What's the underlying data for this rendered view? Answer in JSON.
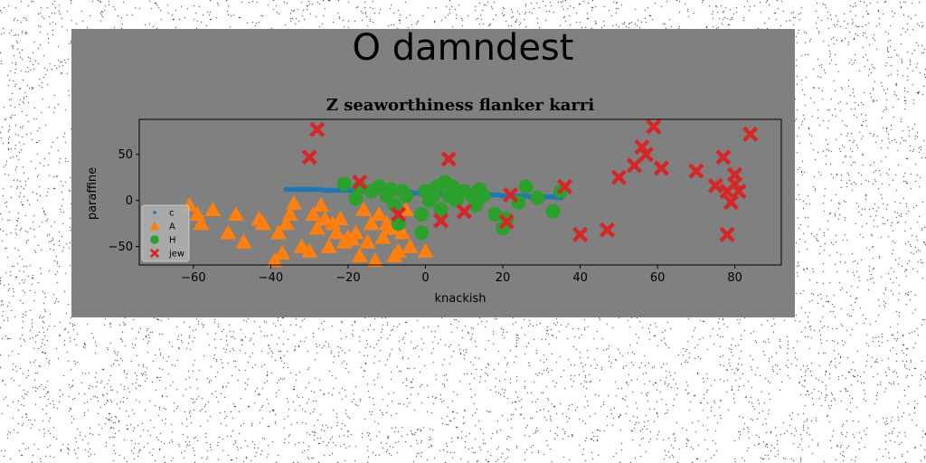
{
  "suptitle": "O damndest",
  "chart_data": {
    "type": "scatter",
    "title": "Z seaworthiness flanker karri",
    "xlabel": "knackish",
    "ylabel": "paraffine",
    "xlim": [
      -74,
      92
    ],
    "ylim": [
      -70,
      88
    ],
    "xticks": [
      -60,
      -40,
      -20,
      0,
      20,
      40,
      60,
      80
    ],
    "yticks": [
      -50,
      0,
      50
    ],
    "xtick_labels": [
      "−60",
      "−40",
      "−20",
      "0",
      "20",
      "40",
      "60",
      "80"
    ],
    "ytick_labels": [
      "−50",
      "0",
      "50"
    ],
    "grid": false,
    "legend_position": "lower-left",
    "series": [
      {
        "name": "c",
        "marker": "circle-small",
        "color": "#1f77b4",
        "points": [
          [
            -36,
            12
          ],
          [
            -35,
            12
          ],
          [
            -34,
            12
          ],
          [
            -33,
            12
          ],
          [
            -32,
            12
          ],
          [
            -31,
            12
          ],
          [
            -30,
            12
          ],
          [
            -29,
            12
          ],
          [
            -28,
            12
          ],
          [
            -27,
            12
          ],
          [
            -26,
            11
          ],
          [
            -25,
            11
          ],
          [
            -24,
            11
          ],
          [
            -23,
            11
          ],
          [
            -22,
            11
          ],
          [
            -21,
            11
          ],
          [
            -20,
            11
          ],
          [
            -19,
            11
          ],
          [
            -18,
            10
          ],
          [
            -17,
            10
          ],
          [
            -16,
            10
          ],
          [
            -15,
            10
          ],
          [
            -14,
            10
          ],
          [
            -13,
            10
          ],
          [
            -12,
            10
          ],
          [
            -11,
            9
          ],
          [
            -10,
            9
          ],
          [
            -9,
            9
          ],
          [
            -8,
            9
          ],
          [
            -7,
            9
          ],
          [
            -6,
            9
          ],
          [
            -5,
            9
          ],
          [
            -4,
            9
          ],
          [
            -3,
            8
          ],
          [
            -2,
            8
          ],
          [
            -1,
            8
          ],
          [
            0,
            8
          ],
          [
            1,
            8
          ],
          [
            2,
            8
          ],
          [
            3,
            8
          ],
          [
            4,
            8
          ],
          [
            5,
            7
          ],
          [
            6,
            7
          ],
          [
            7,
            7
          ],
          [
            8,
            7
          ],
          [
            9,
            7
          ],
          [
            10,
            7
          ],
          [
            11,
            7
          ],
          [
            12,
            6
          ],
          [
            13,
            6
          ],
          [
            14,
            6
          ],
          [
            15,
            6
          ],
          [
            16,
            6
          ],
          [
            17,
            6
          ],
          [
            18,
            6
          ],
          [
            19,
            6
          ],
          [
            20,
            5
          ],
          [
            21,
            5
          ],
          [
            22,
            5
          ],
          [
            23,
            5
          ],
          [
            24,
            5
          ],
          [
            25,
            5
          ],
          [
            26,
            5
          ],
          [
            27,
            4
          ],
          [
            28,
            4
          ],
          [
            29,
            4
          ],
          [
            30,
            4
          ],
          [
            31,
            4
          ],
          [
            32,
            4
          ],
          [
            33,
            4
          ],
          [
            34,
            3
          ],
          [
            35,
            3
          ]
        ]
      },
      {
        "name": "A",
        "marker": "triangle",
        "color": "#ff7f0e",
        "points": [
          [
            -61,
            -5
          ],
          [
            -59,
            -15
          ],
          [
            -58,
            -25
          ],
          [
            -55,
            -10
          ],
          [
            -51,
            -35
          ],
          [
            -49,
            -15
          ],
          [
            -47,
            -45
          ],
          [
            -43,
            -20
          ],
          [
            -42,
            -25
          ],
          [
            -39,
            -65
          ],
          [
            -38,
            -35
          ],
          [
            -37,
            -57
          ],
          [
            -36,
            -25
          ],
          [
            -35,
            -15
          ],
          [
            -34,
            -3
          ],
          [
            -32,
            -50
          ],
          [
            -30,
            -55
          ],
          [
            -29,
            -15
          ],
          [
            -28,
            -30
          ],
          [
            -27,
            -5
          ],
          [
            -26,
            -20
          ],
          [
            -25,
            -50
          ],
          [
            -24,
            -25
          ],
          [
            -23,
            -35
          ],
          [
            -22,
            -20
          ],
          [
            -21,
            -45
          ],
          [
            -20,
            -40
          ],
          [
            -19,
            -42
          ],
          [
            -18,
            -35
          ],
          [
            -17,
            -60
          ],
          [
            -16,
            -10
          ],
          [
            -15,
            -45
          ],
          [
            -14,
            -25
          ],
          [
            -13,
            -65
          ],
          [
            -12,
            -15
          ],
          [
            -11,
            -40
          ],
          [
            -10,
            -25
          ],
          [
            -9,
            -30
          ],
          [
            -8,
            -60
          ],
          [
            -7,
            -55
          ],
          [
            -6,
            -35
          ],
          [
            -5,
            -10
          ],
          [
            -4,
            -50
          ],
          [
            0,
            -55
          ]
        ]
      },
      {
        "name": "H",
        "marker": "circle",
        "color": "#2ca02c",
        "points": [
          [
            -21,
            18
          ],
          [
            -18,
            2
          ],
          [
            -17,
            14
          ],
          [
            -14,
            10
          ],
          [
            -12,
            15
          ],
          [
            -10,
            5
          ],
          [
            -9,
            12
          ],
          [
            -8,
            -5
          ],
          [
            -7,
            -25
          ],
          [
            -6,
            10
          ],
          [
            -5,
            5
          ],
          [
            -1,
            -35
          ],
          [
            -1,
            -15
          ],
          [
            0,
            10
          ],
          [
            1,
            0
          ],
          [
            2,
            5
          ],
          [
            3,
            15
          ],
          [
            4,
            -10
          ],
          [
            5,
            20
          ],
          [
            6,
            5
          ],
          [
            7,
            15
          ],
          [
            8,
            0
          ],
          [
            10,
            10
          ],
          [
            12,
            5
          ],
          [
            13,
            -5
          ],
          [
            14,
            12
          ],
          [
            15,
            5
          ],
          [
            18,
            -15
          ],
          [
            20,
            -30
          ],
          [
            21,
            -20
          ],
          [
            24,
            -2
          ],
          [
            26,
            15
          ],
          [
            29,
            3
          ],
          [
            33,
            -12
          ],
          [
            35,
            10
          ]
        ]
      },
      {
        "name": "jew",
        "marker": "x",
        "color": "#d62728",
        "points": [
          [
            -30,
            47
          ],
          [
            -28,
            77
          ],
          [
            -17,
            20
          ],
          [
            -7,
            -15
          ],
          [
            4,
            -22
          ],
          [
            6,
            45
          ],
          [
            10,
            -12
          ],
          [
            21,
            -23
          ],
          [
            22,
            6
          ],
          [
            36,
            15
          ],
          [
            40,
            -37
          ],
          [
            47,
            -32
          ],
          [
            50,
            25
          ],
          [
            54,
            38
          ],
          [
            56,
            58
          ],
          [
            57,
            50
          ],
          [
            59,
            80
          ],
          [
            61,
            35
          ],
          [
            70,
            32
          ],
          [
            75,
            16
          ],
          [
            77,
            47
          ],
          [
            78,
            10
          ],
          [
            78,
            -37
          ],
          [
            79,
            -2
          ],
          [
            80,
            18
          ],
          [
            80,
            28
          ],
          [
            81,
            10
          ],
          [
            84,
            72
          ]
        ]
      }
    ]
  }
}
